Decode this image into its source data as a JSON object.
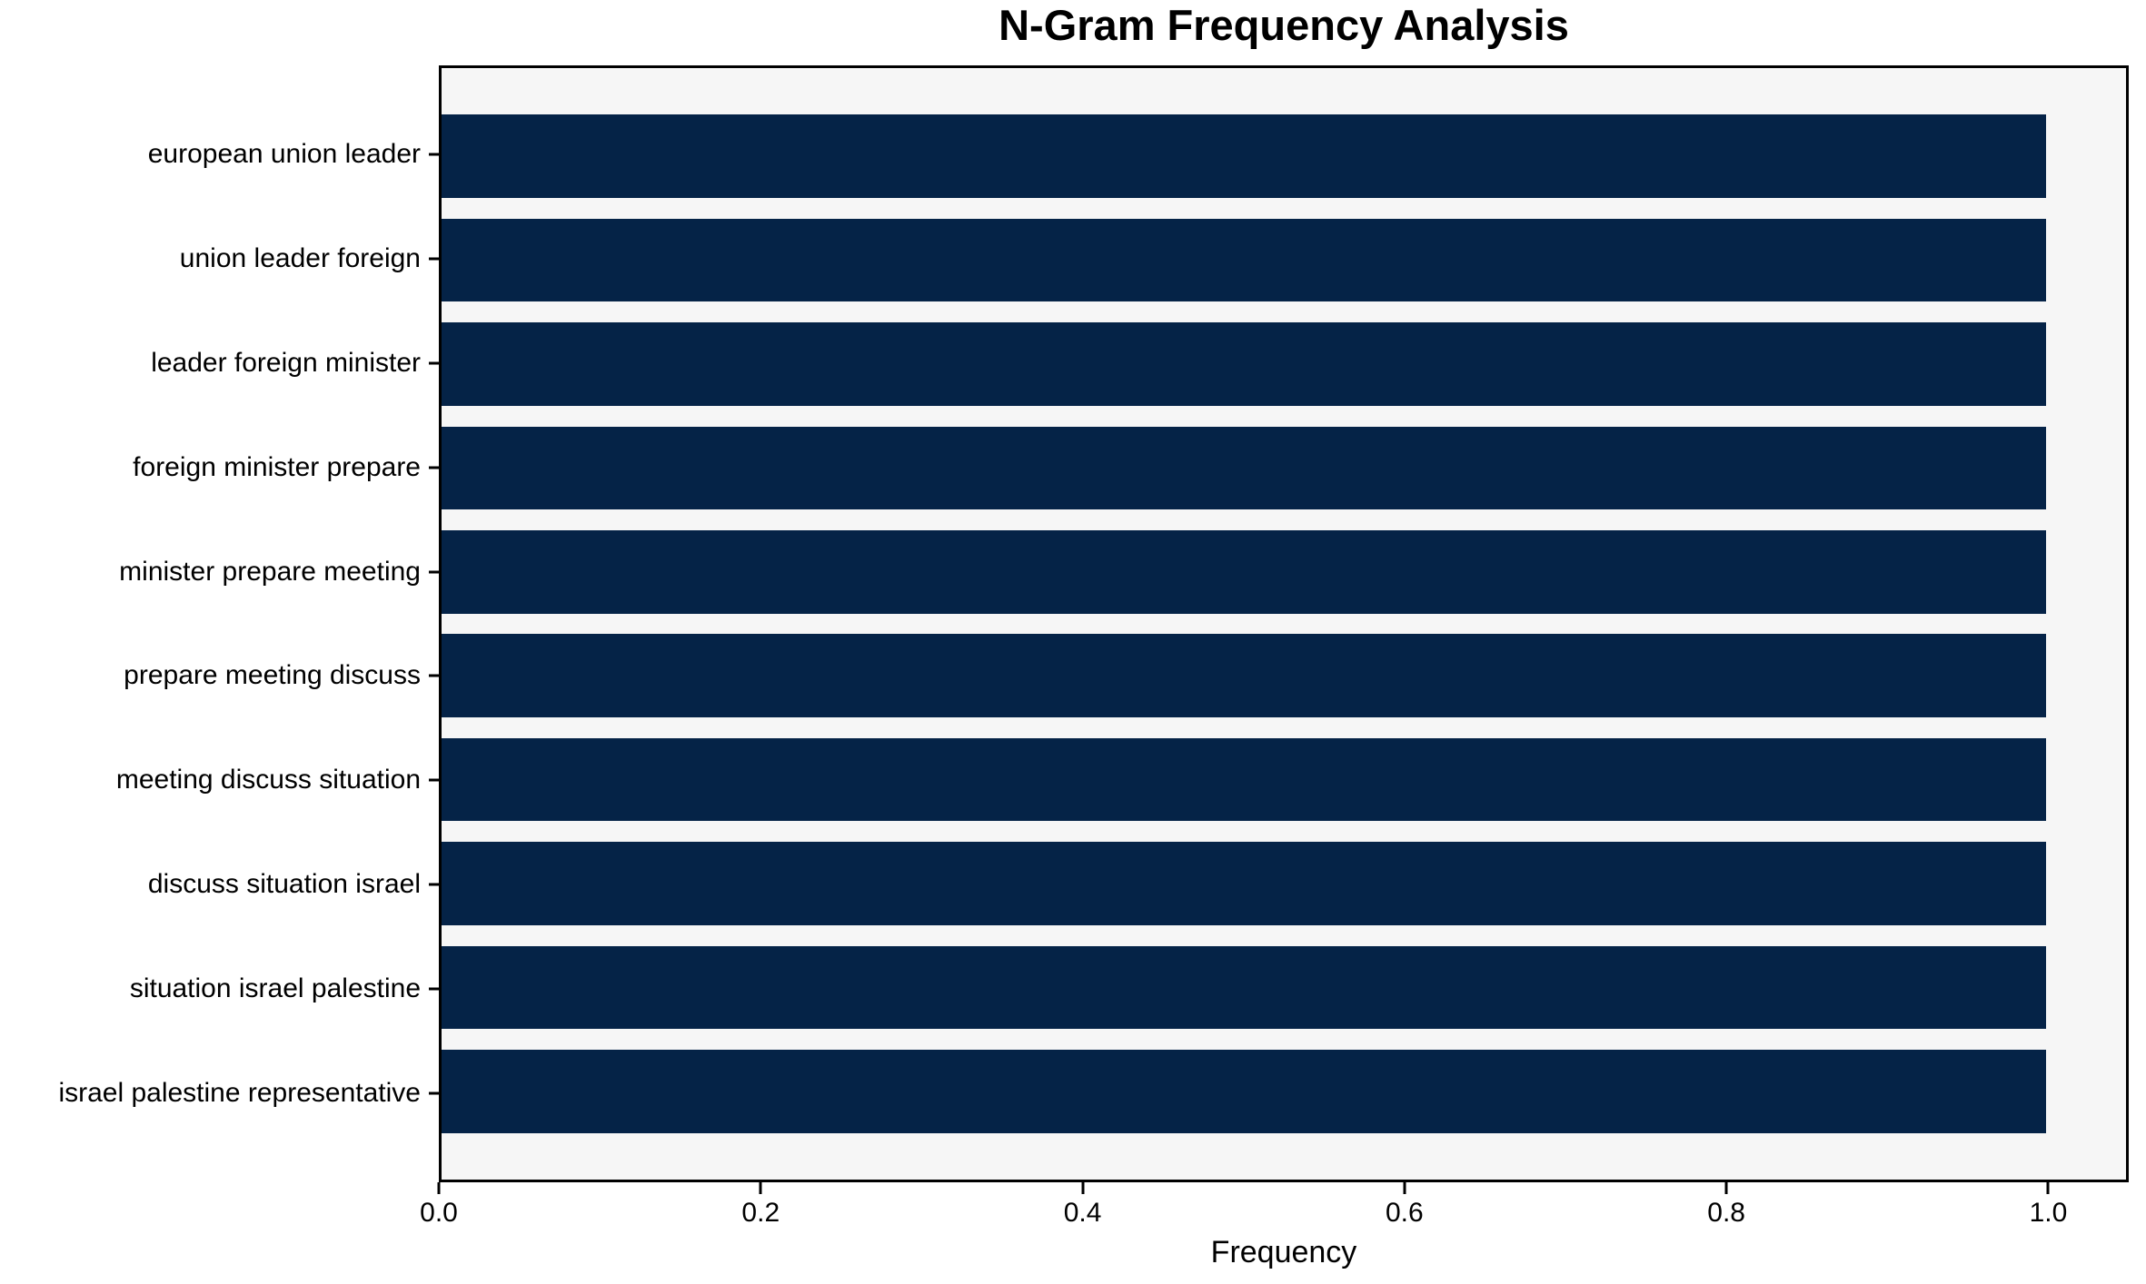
{
  "chart_data": {
    "type": "bar",
    "orientation": "horizontal",
    "title": "N-Gram Frequency Analysis",
    "xlabel": "Frequency",
    "ylabel": "",
    "categories": [
      "european union leader",
      "union leader foreign",
      "leader foreign minister",
      "foreign minister prepare",
      "minister prepare meeting",
      "prepare meeting discuss",
      "meeting discuss situation",
      "discuss situation israel",
      "situation israel palestine",
      "israel palestine representative"
    ],
    "values": [
      1.0,
      1.0,
      1.0,
      1.0,
      1.0,
      1.0,
      1.0,
      1.0,
      1.0,
      1.0
    ],
    "xlim": [
      0,
      1.05
    ],
    "xticks": [
      0.0,
      0.2,
      0.4,
      0.6,
      0.8,
      1.0
    ],
    "xtick_labels": [
      "0.0",
      "0.2",
      "0.4",
      "0.6",
      "0.8",
      "1.0"
    ],
    "bar_thickness": 0.8,
    "outer_pad": 0.85,
    "grid": false,
    "legend": false,
    "colors": {
      "bar": "#052347",
      "plot_background": "#f6f6f6",
      "figure_background": "#ffffff",
      "spine": "#000000",
      "text": "#000000"
    }
  }
}
